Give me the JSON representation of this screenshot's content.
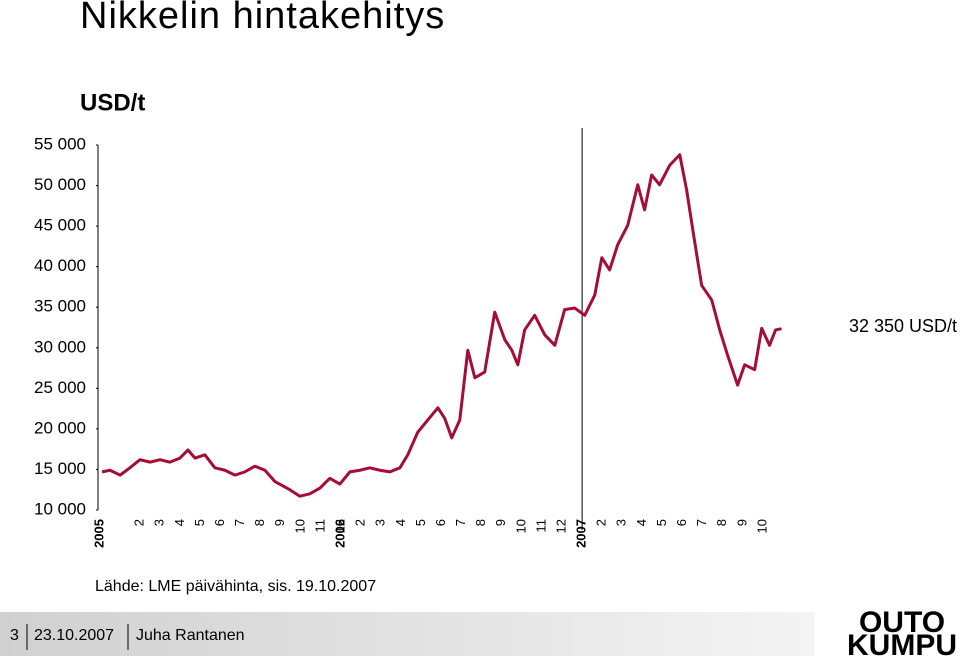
{
  "chart_data": {
    "type": "line",
    "title": "Nikkelin hintakehitys",
    "unit_label": "USD/t",
    "annotation": "32 350 USD/t",
    "source": "Lähde: LME päivähinta, sis. 19.10.2007",
    "xlim": [
      0,
      34
    ],
    "xticks": [
      {
        "value": 0,
        "label": "2005"
      },
      2,
      3,
      4,
      5,
      6,
      7,
      8,
      9,
      10,
      11,
      12,
      {
        "value": 12,
        "label": "2006"
      },
      {
        "value": 13,
        "label": "2"
      },
      {
        "value": 14,
        "label": "3"
      },
      {
        "value": 15,
        "label": "4"
      },
      {
        "value": 16,
        "label": "5"
      },
      {
        "value": 17,
        "label": "6"
      },
      {
        "value": 18,
        "label": "7"
      },
      {
        "value": 19,
        "label": "8"
      },
      {
        "value": 20,
        "label": "9"
      },
      {
        "value": 21,
        "label": "10"
      },
      {
        "value": 22,
        "label": "11"
      },
      {
        "value": 23,
        "label": "12"
      },
      {
        "value": 24,
        "label": "2007"
      },
      {
        "value": 25,
        "label": "2"
      },
      {
        "value": 26,
        "label": "3"
      },
      {
        "value": 27,
        "label": "4"
      },
      {
        "value": 28,
        "label": "5"
      },
      {
        "value": 29,
        "label": "6"
      },
      {
        "value": 30,
        "label": "7"
      },
      {
        "value": 31,
        "label": "8"
      },
      {
        "value": 32,
        "label": "9"
      },
      {
        "value": 33,
        "label": "10"
      }
    ],
    "ylim": [
      10000,
      55000
    ],
    "yticks": [
      {
        "value": 10000,
        "label": "10 000"
      },
      {
        "value": 15000,
        "label": "15 000"
      },
      {
        "value": 20000,
        "label": "20 000"
      },
      {
        "value": 25000,
        "label": "25 000"
      },
      {
        "value": 30000,
        "label": "30 000"
      },
      {
        "value": 35000,
        "label": "35 000"
      },
      {
        "value": 40000,
        "label": "40 000"
      },
      {
        "value": 45000,
        "label": "45 000"
      },
      {
        "value": 50000,
        "label": "50 000"
      },
      {
        "value": 55000,
        "label": "55 000"
      }
    ],
    "year_divider": 24,
    "series": [
      {
        "color": "#a50e34",
        "x": [
          0.1,
          0.5,
          1.0,
          1.49,
          1.99,
          2.49,
          2.99,
          3.48,
          3.98,
          4.38,
          4.73,
          5.22,
          5.72,
          6.22,
          6.72,
          7.21,
          7.71,
          8.21,
          8.71,
          9.45,
          9.95,
          10.45,
          10.95,
          11.44,
          11.94,
          12.44,
          12.94,
          13.43,
          13.93,
          14.43,
          14.93,
          15.32,
          15.82,
          16.32,
          16.82,
          17.16,
          17.51,
          17.91,
          18.31,
          18.66,
          19.15,
          19.65,
          20.15,
          20.5,
          20.8,
          21.14,
          21.64,
          22.14,
          22.64,
          23.13,
          23.63,
          24.13,
          24.63,
          24.98,
          25.37,
          25.77,
          26.27,
          26.77,
          27.11,
          27.46,
          27.86,
          28.36,
          28.86,
          29.2,
          29.55,
          29.95,
          30.45,
          30.85,
          31.24,
          31.74,
          32.09,
          32.59,
          32.94,
          33.33,
          33.63,
          33.93
        ],
        "values": [
          14700,
          14900,
          14300,
          15200,
          16200,
          15900,
          16200,
          15900,
          16400,
          17400,
          16400,
          16800,
          15200,
          14900,
          14300,
          14700,
          15400,
          14900,
          13500,
          12500,
          11700,
          12000,
          12700,
          13900,
          13200,
          14700,
          14900,
          15200,
          14900,
          14700,
          15200,
          16800,
          19600,
          21100,
          22600,
          21300,
          18900,
          21100,
          29700,
          26300,
          27000,
          34400,
          31000,
          29700,
          27900,
          32200,
          34000,
          31600,
          30300,
          34700,
          34900,
          34000,
          36500,
          41100,
          39600,
          42700,
          45100,
          50100,
          47000,
          51300,
          50100,
          52500,
          53800,
          49500,
          43900,
          37700,
          35900,
          32200,
          29100,
          25400,
          27900,
          27300,
          32400,
          30300,
          32200,
          32350
        ]
      }
    ]
  },
  "footer": {
    "page": "3",
    "date": "23.10.2007",
    "author": "Juha Rantanen"
  },
  "logo": {
    "lines": [
      "OUTO",
      "KUMPU"
    ]
  }
}
